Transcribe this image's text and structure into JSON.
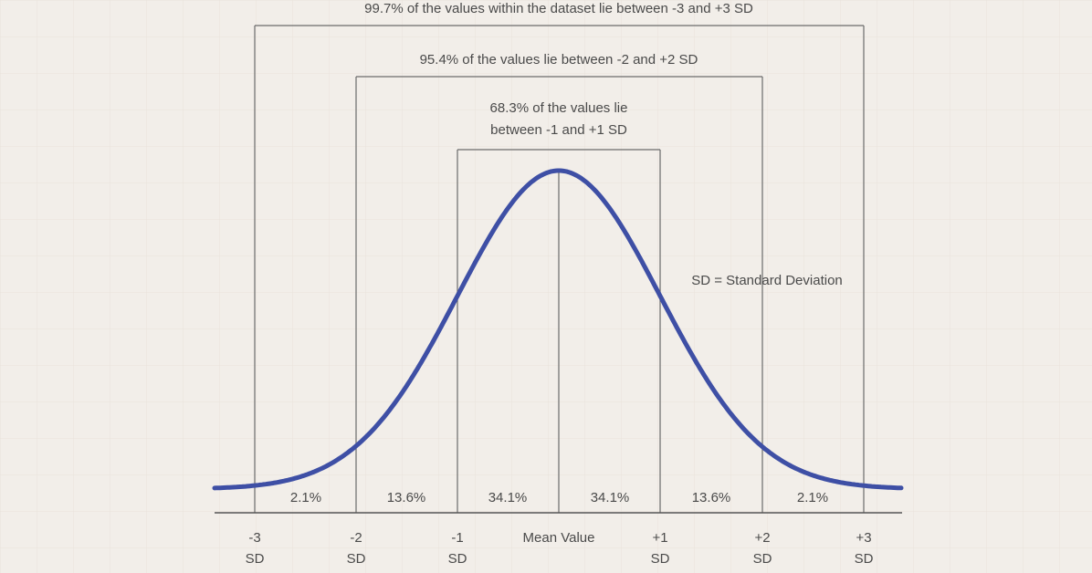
{
  "brackets": [
    {
      "label_lines": [
        "99.7% of the values within the dataset lie between -3 and +3 SD"
      ]
    },
    {
      "label_lines": [
        "95.4% of the values lie between -2 and +2 SD"
      ]
    },
    {
      "label_lines": [
        "68.3% of the values lie",
        "between -1 and +1 SD"
      ]
    }
  ],
  "segments": [
    "2.1%",
    "13.6%",
    "34.1%",
    "34.1%",
    "13.6%",
    "2.1%"
  ],
  "axis_labels": [
    {
      "value": "-3",
      "unit": "SD"
    },
    {
      "value": "-2",
      "unit": "SD"
    },
    {
      "value": "-1",
      "unit": "SD"
    },
    {
      "value": "+1",
      "unit": "SD"
    },
    {
      "value": "+2",
      "unit": "SD"
    },
    {
      "value": "+3",
      "unit": "SD"
    }
  ],
  "mean_label": "Mean Value",
  "legend": "SD = Standard Deviation"
}
